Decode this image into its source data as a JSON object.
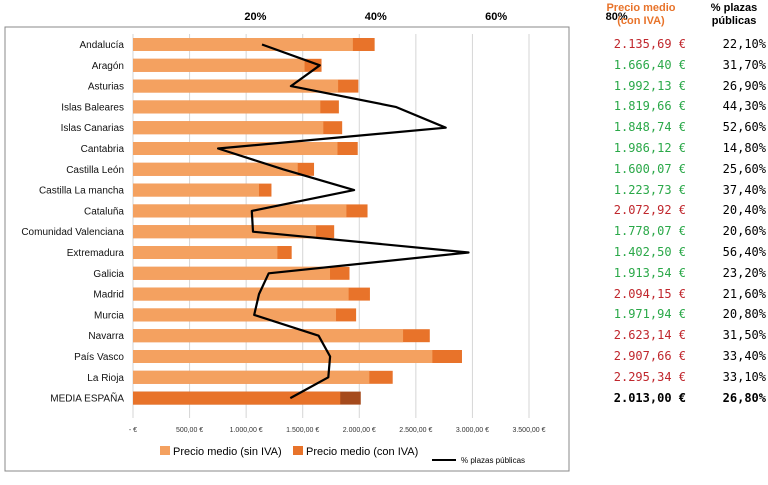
{
  "chart_data": {
    "type": "bar",
    "categories": [
      "Andalucía",
      "Aragón",
      "Asturias",
      "Islas Baleares",
      "Islas Canarias",
      "Cantabria",
      "Castilla León",
      "Castilla La mancha",
      "Cataluña",
      "Comunidad Valenciana",
      "Extremadura",
      "Galicia",
      "Madrid",
      "Murcia",
      "Navarra",
      "País Vasco",
      "La Rioja",
      "MEDIA ESPAÑA"
    ],
    "series": [
      {
        "name": "Precio medio (sin IVA)",
        "color": "#F4A160",
        "values": [
          1943.35,
          1516.42,
          1812.84,
          1655.89,
          1682.35,
          1807.37,
          1456.06,
          1113.59,
          1886.36,
          1617.98,
          1276.28,
          1741.32,
          1905.78,
          1794.47,
          2387.06,
          2645.97,
          2088.76,
          1831.83
        ]
      },
      {
        "name": "Precio medio (con IVA)",
        "color": "#E8732A",
        "values": [
          2135.69,
          1666.4,
          1992.13,
          1819.66,
          1848.74,
          1986.12,
          1600.07,
          1223.73,
          2072.92,
          1778.07,
          1402.5,
          1913.54,
          2094.15,
          1971.94,
          2623.14,
          2907.66,
          2295.34,
          2013.0
        ]
      },
      {
        "name": "% plazas públicas",
        "color": "#000000",
        "axis": "top",
        "values": [
          22.1,
          31.7,
          26.9,
          44.3,
          52.6,
          14.8,
          25.6,
          37.4,
          20.4,
          20.6,
          56.4,
          23.2,
          21.6,
          20.8,
          31.5,
          33.4,
          33.1,
          26.8
        ]
      }
    ],
    "x_bottom": {
      "ticks": [
        "-  €",
        "500,00 €",
        "1.000,00 €",
        "1.500,00 €",
        "2.000,00 €",
        "2.500,00 €",
        "3.000,00 €",
        "3.500,00 €"
      ],
      "range": [
        0,
        3500
      ]
    },
    "x_top": {
      "ticks": [
        "20%",
        "40%",
        "60%",
        "80%"
      ]
    },
    "legend": {
      "items": [
        "Precio medio (sin IVA)",
        "Precio medio (con IVA)",
        "% plazas públicas"
      ],
      "placement": "bottom"
    },
    "grid": true
  },
  "colors": {
    "price_up": "#C0272D",
    "price_down": "#2AA848",
    "header": "#E8732A"
  },
  "table": {
    "header_price": [
      "Precio medio",
      "(con IVA)"
    ],
    "header_pct": [
      "% plazas",
      "públicas"
    ],
    "rows": [
      {
        "price": "2.135,69 €",
        "pct": "22,10%",
        "trend": "up"
      },
      {
        "price": "1.666,40 €",
        "pct": "31,70%",
        "trend": "down"
      },
      {
        "price": "1.992,13 €",
        "pct": "26,90%",
        "trend": "down"
      },
      {
        "price": "1.819,66 €",
        "pct": "44,30%",
        "trend": "down"
      },
      {
        "price": "1.848,74 €",
        "pct": "52,60%",
        "trend": "down"
      },
      {
        "price": "1.986,12 €",
        "pct": "14,80%",
        "trend": "down"
      },
      {
        "price": "1.600,07 €",
        "pct": "25,60%",
        "trend": "down"
      },
      {
        "price": "1.223,73 €",
        "pct": "37,40%",
        "trend": "down"
      },
      {
        "price": "2.072,92 €",
        "pct": "20,40%",
        "trend": "up"
      },
      {
        "price": "1.778,07 €",
        "pct": "20,60%",
        "trend": "down"
      },
      {
        "price": "1.402,50 €",
        "pct": "56,40%",
        "trend": "down"
      },
      {
        "price": "1.913,54 €",
        "pct": "23,20%",
        "trend": "down"
      },
      {
        "price": "2.094,15 €",
        "pct": "21,60%",
        "trend": "up"
      },
      {
        "price": "1.971,94 €",
        "pct": "20,80%",
        "trend": "down"
      },
      {
        "price": "2.623,14 €",
        "pct": "31,50%",
        "trend": "up"
      },
      {
        "price": "2.907,66 €",
        "pct": "33,40%",
        "trend": "up"
      },
      {
        "price": "2.295,34 €",
        "pct": "33,10%",
        "trend": "up"
      },
      {
        "price": "2.013,00 €",
        "pct": "26,80%",
        "trend": "total"
      }
    ]
  }
}
